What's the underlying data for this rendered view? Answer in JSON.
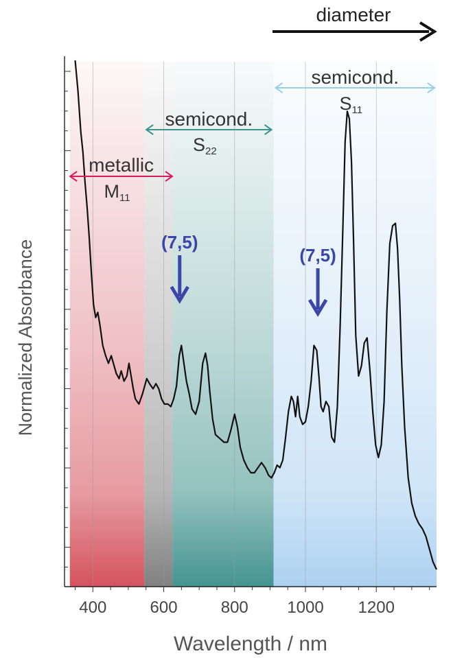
{
  "chart_data": {
    "type": "line",
    "title": "",
    "xlabel": "Wavelength / nm",
    "ylabel": "Normalized Absorbance",
    "xlim": [
      320,
      1370
    ],
    "ylim": [
      0,
      1
    ],
    "grid": "vertical",
    "x_ticks": [
      {
        "value": 400,
        "label": "400"
      },
      {
        "value": 600,
        "label": "600"
      },
      {
        "value": 800,
        "label": "800"
      },
      {
        "value": 1000,
        "label": "1000"
      },
      {
        "value": 1200,
        "label": "1200"
      }
    ],
    "series": [
      {
        "color": "#111111",
        "x": [
          350,
          358,
          366,
          372,
          378,
          384,
          390,
          396,
          402,
          408,
          414,
          420,
          428,
          436,
          444,
          452,
          458,
          466,
          474,
          480,
          488,
          496,
          502,
          508,
          514,
          520,
          530,
          540,
          552,
          560,
          570,
          578,
          586,
          594,
          602,
          612,
          620,
          628,
          636,
          644,
          650,
          656,
          664,
          672,
          680,
          690,
          700,
          710,
          718,
          724,
          730,
          738,
          746,
          754,
          762,
          770,
          780,
          790,
          800,
          808,
          816,
          826,
          836,
          846,
          856,
          866,
          876,
          886,
          896,
          904,
          912,
          920,
          928,
          936,
          944,
          952,
          960,
          966,
          972,
          978,
          984,
          992,
          1000,
          1008,
          1016,
          1024,
          1032,
          1038,
          1044,
          1050,
          1058,
          1066,
          1074,
          1082,
          1090,
          1098,
          1106,
          1112,
          1118,
          1124,
          1130,
          1136,
          1142,
          1150,
          1158,
          1166,
          1174,
          1182,
          1190,
          1198,
          1206,
          1214,
          1222,
          1230,
          1238,
          1246,
          1254,
          1260,
          1266,
          1272,
          1280,
          1290,
          1300,
          1310,
          1320,
          1330,
          1340,
          1350,
          1360,
          1370
        ],
        "y": [
          1.0,
          0.94,
          0.86,
          0.82,
          0.76,
          0.71,
          0.65,
          0.58,
          0.52,
          0.495,
          0.505,
          0.48,
          0.44,
          0.42,
          0.405,
          0.42,
          0.405,
          0.385,
          0.375,
          0.39,
          0.37,
          0.38,
          0.405,
          0.38,
          0.355,
          0.335,
          0.325,
          0.345,
          0.375,
          0.365,
          0.355,
          0.365,
          0.355,
          0.335,
          0.325,
          0.325,
          0.32,
          0.335,
          0.36,
          0.42,
          0.44,
          0.41,
          0.37,
          0.345,
          0.315,
          0.305,
          0.33,
          0.405,
          0.425,
          0.4,
          0.35,
          0.295,
          0.265,
          0.26,
          0.255,
          0.25,
          0.25,
          0.275,
          0.305,
          0.28,
          0.24,
          0.215,
          0.2,
          0.19,
          0.19,
          0.2,
          0.21,
          0.2,
          0.185,
          0.18,
          0.19,
          0.205,
          0.2,
          0.215,
          0.26,
          0.31,
          0.34,
          0.33,
          0.3,
          0.34,
          0.3,
          0.285,
          0.29,
          0.32,
          0.37,
          0.44,
          0.43,
          0.38,
          0.32,
          0.31,
          0.33,
          0.32,
          0.26,
          0.25,
          0.32,
          0.48,
          0.68,
          0.84,
          0.9,
          0.885,
          0.8,
          0.64,
          0.46,
          0.38,
          0.4,
          0.445,
          0.455,
          0.39,
          0.31,
          0.245,
          0.22,
          0.245,
          0.33,
          0.51,
          0.64,
          0.675,
          0.68,
          0.63,
          0.53,
          0.4,
          0.28,
          0.18,
          0.13,
          0.105,
          0.09,
          0.08,
          0.065,
          0.04,
          0.015,
          0.0
        ]
      }
    ],
    "regions": [
      {
        "x_start": 335,
        "x_end": 545,
        "color": "#d24a55",
        "label": "metallic",
        "label_sub": "M",
        "label_subscript": "11",
        "arrow_color": "#d81b5d",
        "arrow_range": [
          330,
          630
        ]
      },
      {
        "x_start": 545,
        "x_end": 625,
        "color": "#7a7a7a",
        "label": "",
        "label_sub": "",
        "label_subscript": "",
        "arrow_color": "",
        "arrow_range": []
      },
      {
        "x_start": 625,
        "x_end": 910,
        "color": "#3b8f8a",
        "label": "semicond.",
        "label_sub": "S",
        "label_subscript": "22",
        "arrow_color": "#3b948a",
        "arrow_range": [
          545,
          910
        ]
      },
      {
        "x_start": 910,
        "x_end": 1370,
        "color": "#a8cff0",
        "label": "semicond.",
        "label_sub": "S",
        "label_subscript": "11",
        "arrow_color": "#96cfe8",
        "arrow_range": [
          910,
          1370
        ]
      }
    ],
    "annotations": [
      {
        "text": "(7,5)",
        "x": 645,
        "color": "#3a46a8"
      },
      {
        "text": "(7,5)",
        "x": 1035,
        "color": "#3a46a8"
      }
    ],
    "diameter_label": "diameter"
  }
}
